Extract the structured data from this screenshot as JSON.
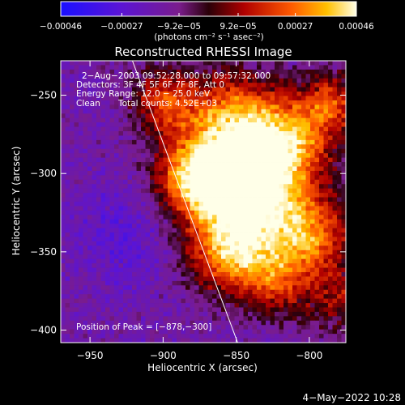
{
  "chart_data": {
    "type": "heatmap",
    "title": "Reconstructed RHESSI Image",
    "xlabel": "Heliocentric X (arcsec)",
    "ylabel": "Heliocentric Y (arcsec)",
    "xlim": [
      -970,
      -775
    ],
    "ylim": [
      -408,
      -228
    ],
    "x_ticks": [
      {
        "value": -950,
        "label": "−950"
      },
      {
        "value": -900,
        "label": "−900"
      },
      {
        "value": -850,
        "label": "−850"
      },
      {
        "value": -800,
        "label": "−800"
      }
    ],
    "y_ticks": [
      {
        "value": -250,
        "label": "−250"
      },
      {
        "value": -300,
        "label": "−300"
      },
      {
        "value": -350,
        "label": "−350"
      },
      {
        "value": -400,
        "label": "−400"
      }
    ],
    "colorbar": {
      "range": [
        -0.00046,
        0.00046
      ],
      "ticks": [
        {
          "value": -0.00046,
          "label": "−0.00046"
        },
        {
          "value": -0.00027,
          "label": "−0.00027"
        },
        {
          "value": -9.2e-05,
          "label": "−9.2e−05"
        },
        {
          "value": 9.2e-05,
          "label": "9.2e−05"
        },
        {
          "value": 0.00027,
          "label": "0.00027"
        },
        {
          "value": 0.00046,
          "label": "0.00046"
        }
      ],
      "unit_label": "(photons cm⁻² s⁻¹ asec⁻²)"
    },
    "annotations": [
      "2−Aug−2003 09:52:28.000 to 09:57:32.000",
      "Detectors: 3F 4F 5F 6F 7F 8F, Att 0",
      "Energy Range: 12.0 − 25.0 keV",
      "Clean",
      "Total counts: 4.52E+03"
    ],
    "peak_label": "Position of Peak = [−878,−300]",
    "peak": [
      -878,
      -300
    ],
    "limb_line": [
      [
        -921,
        -228
      ],
      [
        -849,
        -408
      ]
    ],
    "grid": false
  },
  "footer": {
    "date": "4−May−2022 10:28"
  },
  "colors": {
    "background": "#000000",
    "text": "#ffffff"
  }
}
